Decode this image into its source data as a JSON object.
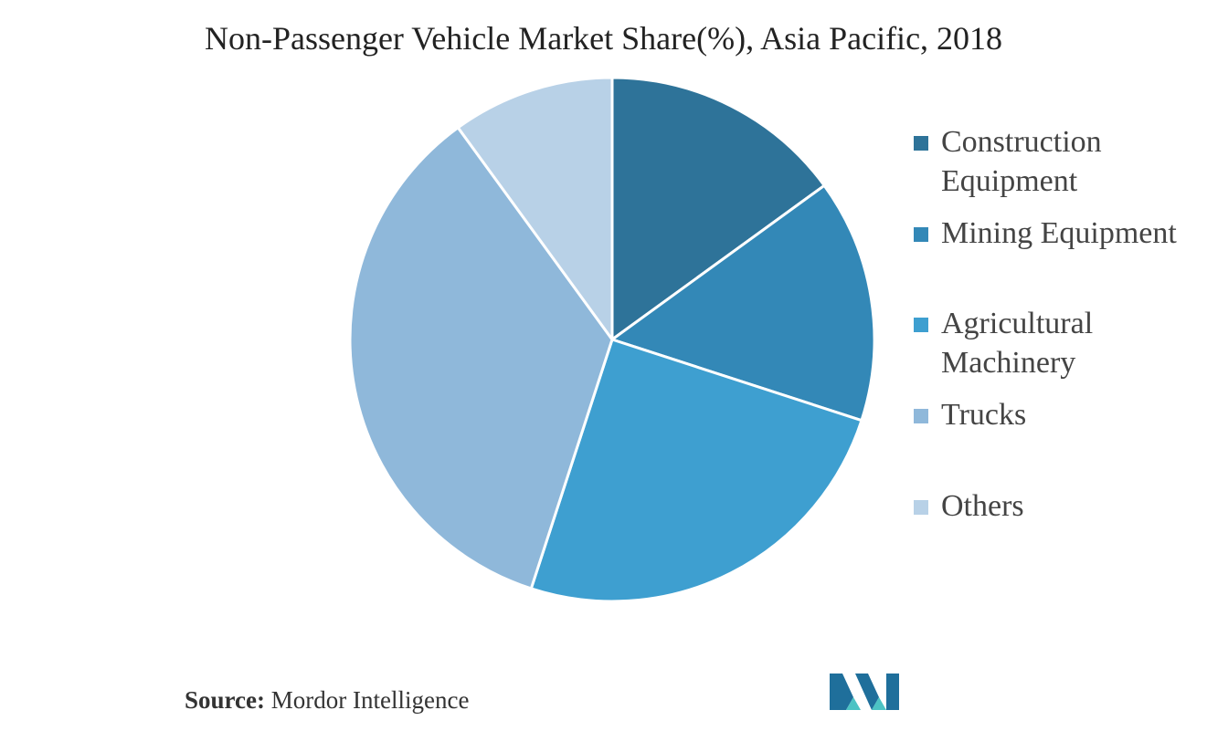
{
  "chart_data": {
    "type": "pie",
    "title": "Non-Passenger Vehicle Market Share(%), Asia Pacific, 2018",
    "categories": [
      "Construction Equipment",
      "Mining Equipment",
      "Agricultural Machinery",
      "Trucks",
      "Others"
    ],
    "values": [
      15,
      15,
      25,
      35,
      10
    ],
    "colors": [
      "#2e7399",
      "#3388b7",
      "#3e9fd0",
      "#8fb8da",
      "#b8d1e7"
    ],
    "legend_placement": "right",
    "start_angle": "top",
    "direction": "clockwise"
  },
  "legend": {
    "items": [
      {
        "label": "Construction\nEquipment",
        "color": "#2e7399"
      },
      {
        "label": "Mining Equipment",
        "color": "#3388b7"
      },
      {
        "label": "Agricultural\nMachinery",
        "color": "#3e9fd0"
      },
      {
        "label": "Trucks",
        "color": "#8fb8da"
      },
      {
        "label": "Others",
        "color": "#b8d1e7"
      }
    ]
  },
  "source": {
    "label": "Source:",
    "text": " Mordor Intelligence"
  },
  "logo": {
    "icon": "mordor-intelligence-logo-icon",
    "colors": [
      "#1f6f9b",
      "#4cc3c4"
    ]
  }
}
